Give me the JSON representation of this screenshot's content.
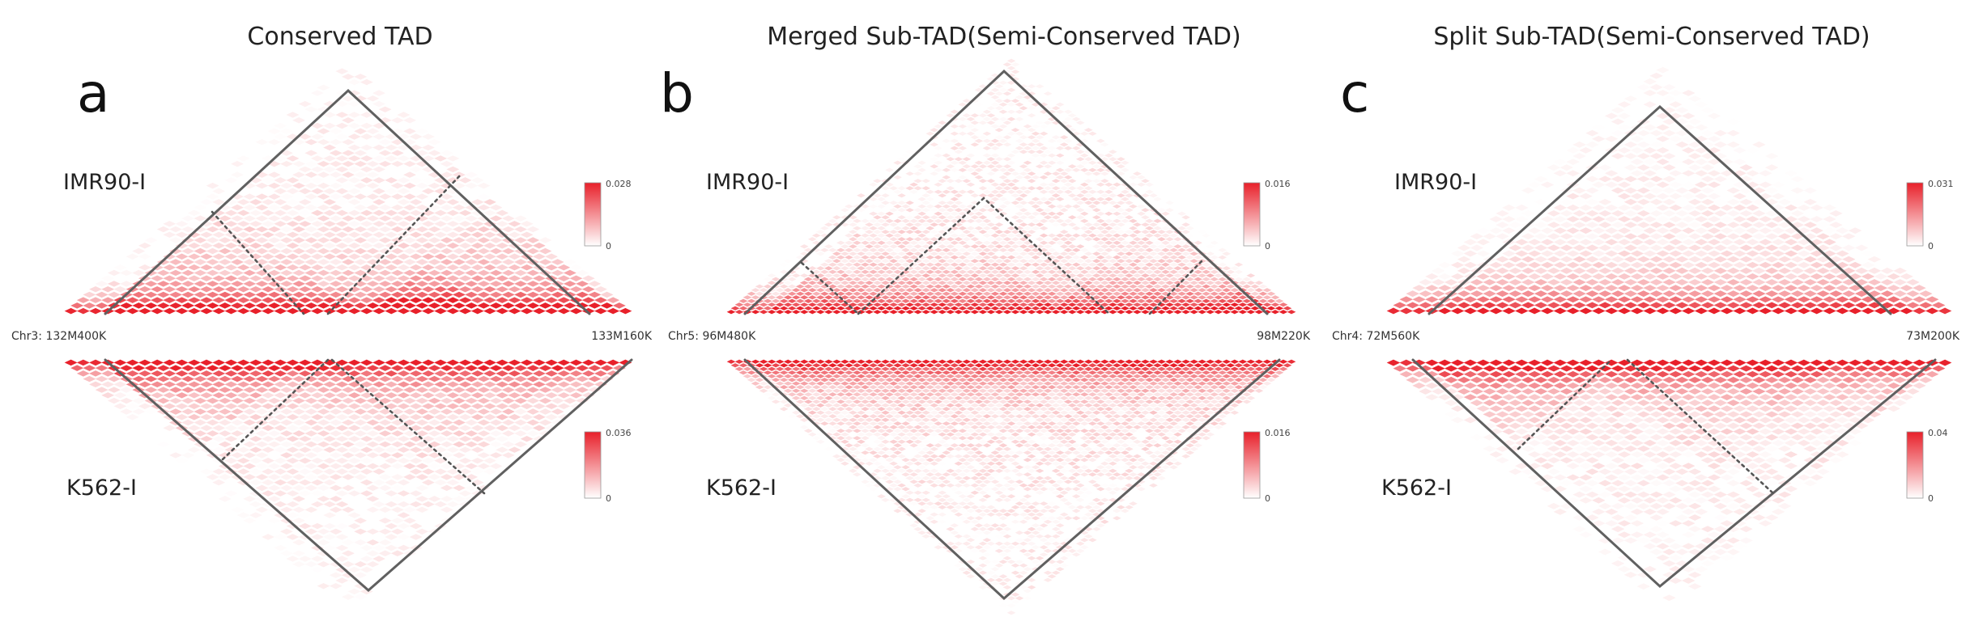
{
  "panels": [
    {
      "letter": "a",
      "title": "Conserved TAD",
      "top_track": "IMR90-I",
      "bottom_track": "K562-I",
      "coord_left": "Chr3: 132M400K",
      "coord_right": "133M160K",
      "top_scale": {
        "max": "0.028",
        "min": "0"
      },
      "bottom_scale": {
        "max": "0.036",
        "min": "0"
      }
    },
    {
      "letter": "b",
      "title": "Merged Sub-TAD(Semi-Conserved TAD)",
      "top_track": "IMR90-I",
      "bottom_track": "K562-I",
      "coord_left": "Chr5: 96M480K",
      "coord_right": "98M220K",
      "top_scale": {
        "max": "0.016",
        "min": "0"
      },
      "bottom_scale": {
        "max": "0.016",
        "min": "0"
      }
    },
    {
      "letter": "c",
      "title": "Split Sub-TAD(Semi-Conserved TAD)",
      "top_track": "IMR90-I",
      "bottom_track": "K562-I",
      "coord_left": "Chr4: 72M560K",
      "coord_right": "73M200K",
      "top_scale": {
        "max": "0.031",
        "min": "0"
      },
      "bottom_scale": {
        "max": "0.04",
        "min": "0"
      }
    }
  ],
  "colors": {
    "heat": "#e8202a",
    "tad_outline": "#606060",
    "subtad_dotted": "#555555"
  }
}
